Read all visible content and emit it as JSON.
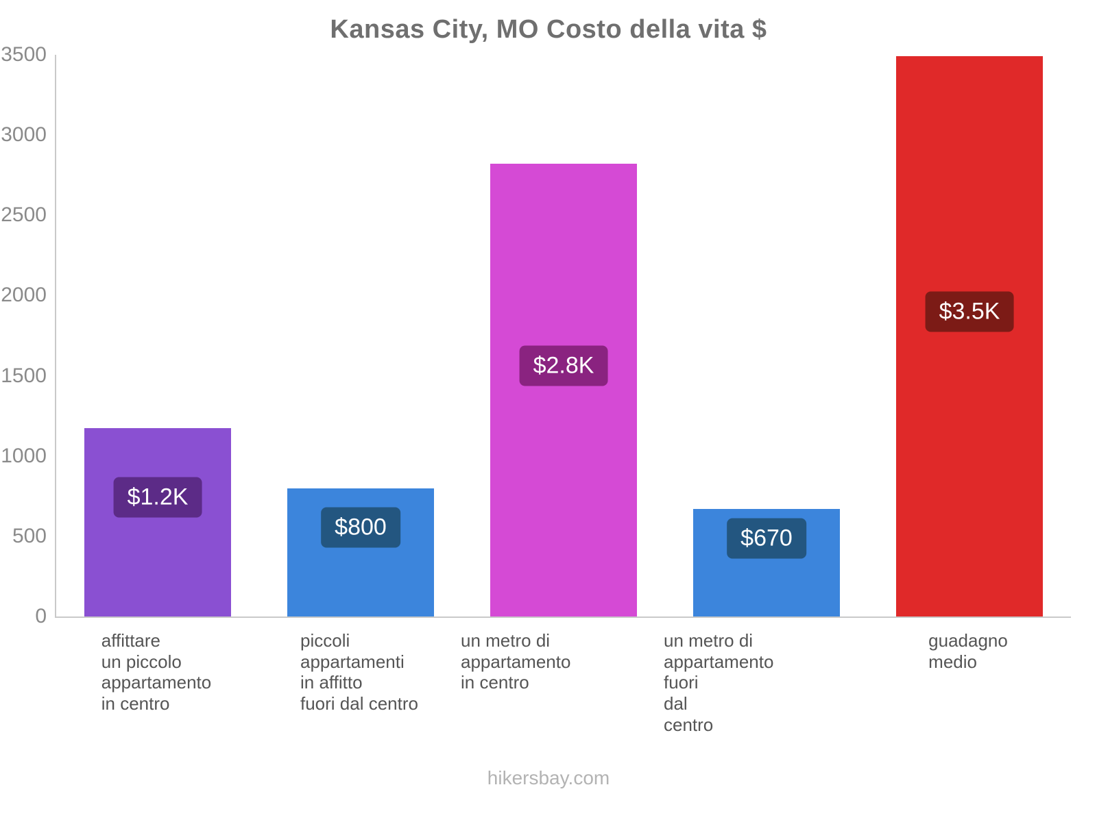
{
  "title": "Kansas City, MO Costo della vita $",
  "footer": "hikersbay.com",
  "chart_data": {
    "type": "bar",
    "title": "Kansas City, MO Costo della vita $",
    "xlabel": "",
    "ylabel": "",
    "ylim": [
      0,
      3500
    ],
    "yticks": [
      0,
      500,
      1000,
      1500,
      2000,
      2500,
      3000,
      3500
    ],
    "grid": false,
    "legend": false,
    "categories": [
      "affittare un piccolo appartamento in centro",
      "piccoli appartamenti in affitto fuori dal centro",
      "un metro di appartamento in centro",
      "un metro di appartamento fuori dal centro",
      "guadagno medio"
    ],
    "category_lines": [
      [
        "affittare",
        "un piccolo",
        "appartamento",
        "in centro"
      ],
      [
        "piccoli",
        "appartamenti",
        "in affitto",
        "fuori dal centro"
      ],
      [
        "un metro di appartamento",
        "in centro"
      ],
      [
        "un metro di appartamento",
        "fuori",
        "dal",
        "centro"
      ],
      [
        "guadagno",
        "medio"
      ]
    ],
    "values": [
      1175,
      800,
      2820,
      670,
      3490
    ],
    "value_labels": [
      "$1.2K",
      "$800",
      "$2.8K",
      "$670",
      "$3.5K"
    ],
    "bar_colors": [
      "#8a50d2",
      "#3c85dc",
      "#d54ad5",
      "#3c85dc",
      "#e02929"
    ],
    "label_bg_colors": [
      "#5c2b87",
      "#235680",
      "#8a2380",
      "#235680",
      "#7c1b16"
    ],
    "currency": "$"
  }
}
